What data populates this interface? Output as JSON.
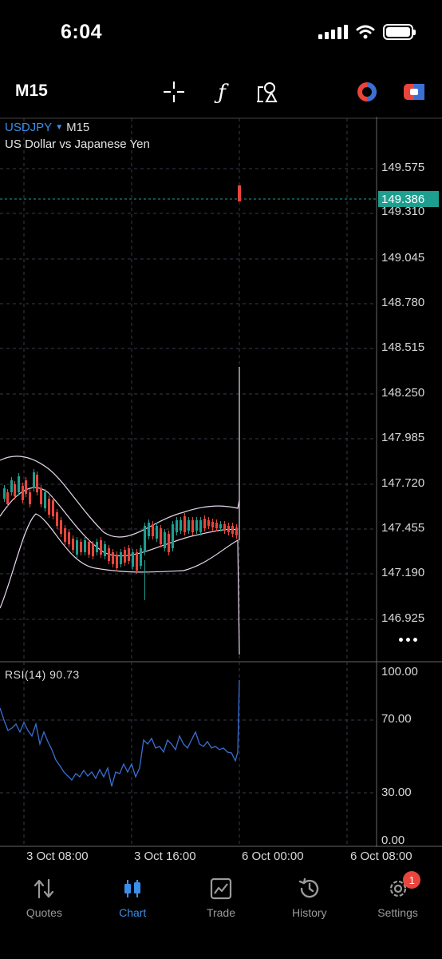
{
  "status_bar": {
    "time": "6:04"
  },
  "toolbar": {
    "timeframe": "M15",
    "icons": [
      "crosshair-icon",
      "indicator-f-icon",
      "objects-icon",
      "one-click-trade-icon",
      "account-icon"
    ]
  },
  "chart": {
    "symbol": "USDJPY",
    "timeframe": "M15",
    "description": "US Dollar vs Japanese Yen",
    "current_price": "149.386",
    "price_scale": [
      "149.575",
      "149.310",
      "149.045",
      "148.780",
      "148.515",
      "148.250",
      "147.985",
      "147.720",
      "147.455",
      "147.190",
      "146.925"
    ],
    "rsi_label": "RSI(14) 90.73",
    "rsi_levels": [
      "100.00",
      "70.00",
      "30.00",
      "0.00"
    ],
    "time_labels": [
      "3 Oct 08:00",
      "3 Oct 16:00",
      "6 Oct 00:00",
      "6 Oct 08:00"
    ],
    "colors": {
      "bull": "#1e9e8f",
      "bear": "#e8453c",
      "bands": "#e8d8ee",
      "rsi": "#3b6fd4",
      "grid": "#3a3a4a"
    }
  },
  "tabs": [
    {
      "label": "Quotes",
      "icon": "quotes-icon"
    },
    {
      "label": "Chart",
      "icon": "chart-icon",
      "active": true
    },
    {
      "label": "Trade",
      "icon": "trade-icon"
    },
    {
      "label": "History",
      "icon": "history-icon"
    },
    {
      "label": "Settings",
      "icon": "settings-icon",
      "badge": "1"
    }
  ]
}
